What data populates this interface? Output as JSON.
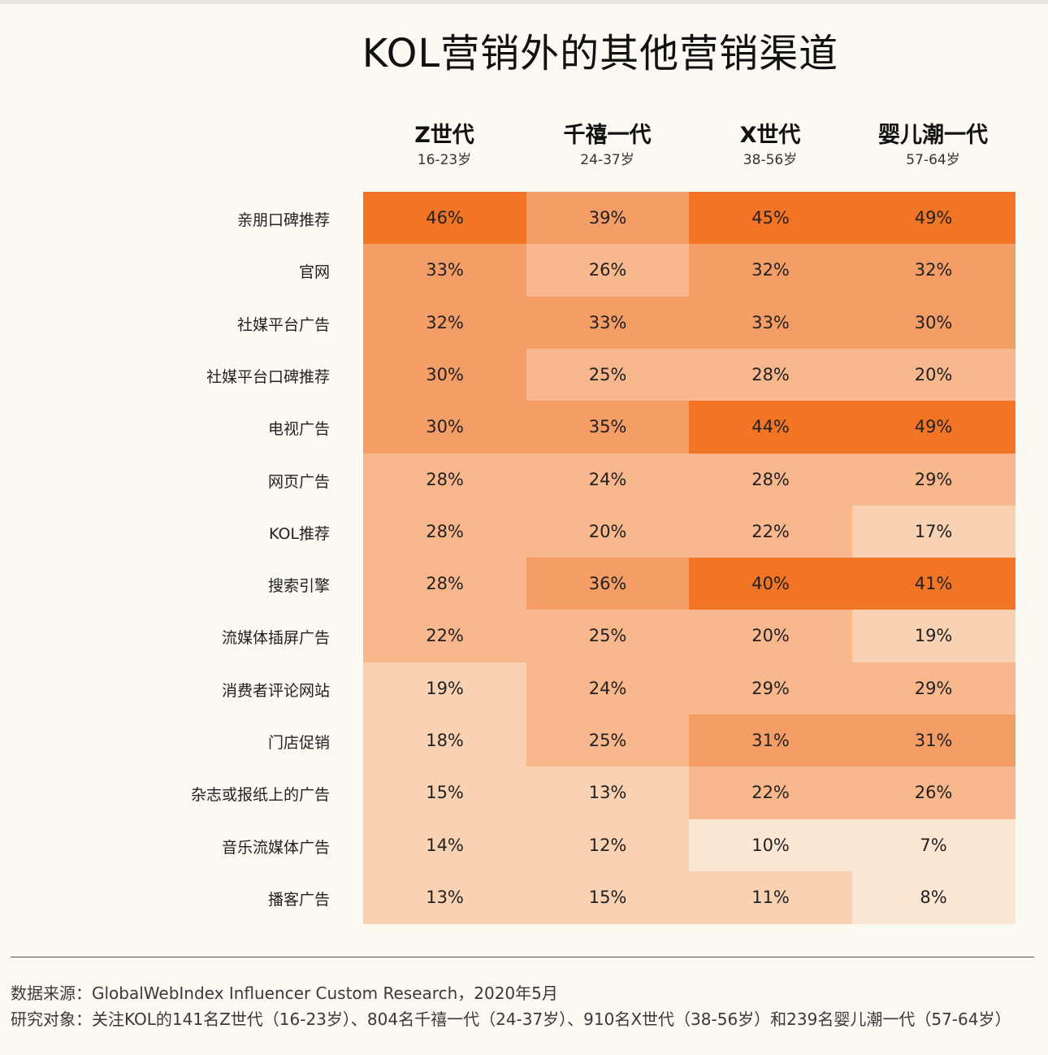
{
  "title": "KOL营销外的其他营销渠道",
  "columns": [
    {
      "name": "Z世代",
      "age": "16-23岁"
    },
    {
      "name": "千禧一代",
      "age": "24-37岁"
    },
    {
      "name": "X世代",
      "age": "38-56岁"
    },
    {
      "name": "婴儿潮一代",
      "age": "57-64岁"
    }
  ],
  "colors": {
    "background": "#fcf9f3",
    "scale": [
      "#fbe6d4",
      "#f9d2b4",
      "#f8b78c",
      "#f49d66",
      "#f27526"
    ]
  },
  "chart_data": {
    "type": "heatmap",
    "title": "KOL营销外的其他营销渠道",
    "unit": "%",
    "x": [
      "Z世代",
      "千禧一代",
      "X世代",
      "婴儿潮一代"
    ],
    "y": [
      "亲朋口碑推荐",
      "官网",
      "社媒平台广告",
      "社媒平台口碑推荐",
      "电视广告",
      "网页广告",
      "KOL推荐",
      "搜索引擎",
      "流媒体插屏广告",
      "消费者评论网站",
      "门店促销",
      "杂志或报纸上的广告",
      "音乐流媒体广告",
      "播客广告"
    ],
    "values": [
      [
        46,
        39,
        45,
        49
      ],
      [
        33,
        26,
        32,
        32
      ],
      [
        32,
        33,
        33,
        30
      ],
      [
        30,
        25,
        28,
        20
      ],
      [
        30,
        35,
        44,
        49
      ],
      [
        28,
        24,
        28,
        29
      ],
      [
        28,
        20,
        22,
        17
      ],
      [
        28,
        36,
        40,
        41
      ],
      [
        22,
        25,
        20,
        19
      ],
      [
        19,
        24,
        29,
        29
      ],
      [
        18,
        25,
        31,
        31
      ],
      [
        15,
        13,
        22,
        26
      ],
      [
        14,
        12,
        10,
        7
      ],
      [
        13,
        15,
        11,
        8
      ]
    ]
  },
  "footnotes": {
    "source": "数据来源：GlobalWebIndex Influencer Custom Research，2020年5月",
    "sample": "研究对象：关注KOL的141名Z世代（16-23岁）、804名千禧一代（24-37岁）、910名X世代（38-56岁）和239名婴儿潮一代（57-64岁）"
  }
}
